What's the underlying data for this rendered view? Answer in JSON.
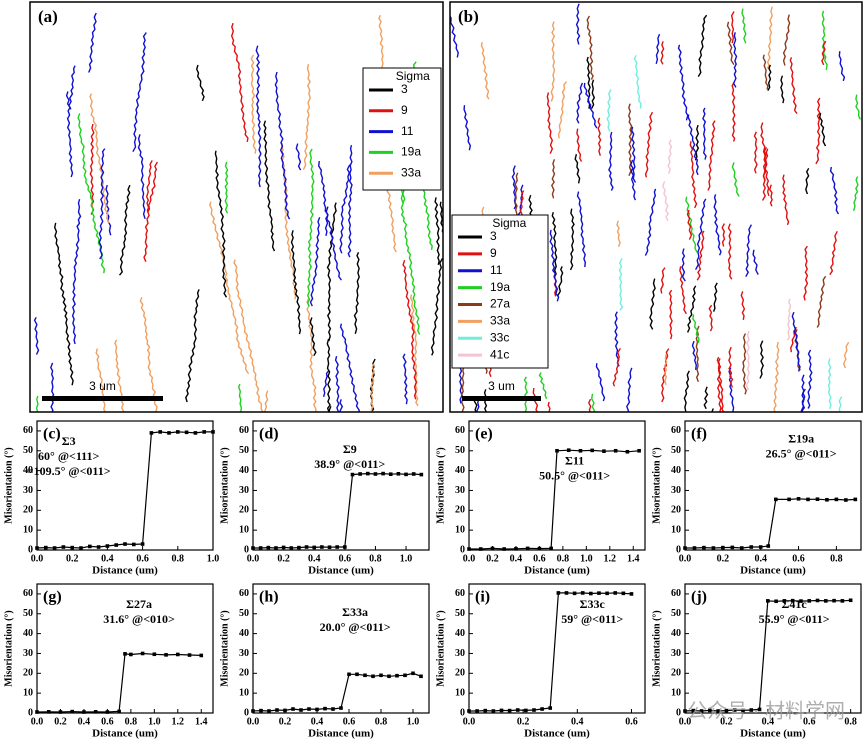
{
  "maps": [
    {
      "label": "(a)",
      "legend_title": "Sigma",
      "scale_bar": "3 um",
      "legend": [
        {
          "name": "3",
          "color": "#000000"
        },
        {
          "name": "9",
          "color": "#e01010"
        },
        {
          "name": "11",
          "color": "#1010d0"
        },
        {
          "name": "19a",
          "color": "#20d020"
        },
        {
          "name": "33a",
          "color": "#f0a060"
        }
      ]
    },
    {
      "label": "(b)",
      "legend_title": "Sigma",
      "scale_bar": "3 um",
      "legend": [
        {
          "name": "3",
          "color": "#000000"
        },
        {
          "name": "9",
          "color": "#e01010"
        },
        {
          "name": "11",
          "color": "#1010d0"
        },
        {
          "name": "19a",
          "color": "#20d020"
        },
        {
          "name": "27a",
          "color": "#8b3a1a"
        },
        {
          "name": "33a",
          "color": "#f0a060"
        },
        {
          "name": "33c",
          "color": "#70eedd"
        },
        {
          "name": "41c",
          "color": "#f4c4d4"
        }
      ]
    }
  ],
  "watermark": "公众号 · 材料学网",
  "chart_data": [
    {
      "type": "line",
      "label": "(c)",
      "annotation": [
        "Σ3",
        "60° @<111>",
        "=109.5° @<011>"
      ],
      "xlabel": "Distance (um)",
      "ylabel": "Misorientation (°)",
      "color": "#000000",
      "x": [
        0,
        0.05,
        0.1,
        0.15,
        0.2,
        0.25,
        0.3,
        0.35,
        0.4,
        0.45,
        0.5,
        0.55,
        0.6,
        0.65,
        0.7,
        0.75,
        0.8,
        0.85,
        0.9,
        0.95,
        1.0
      ],
      "values": [
        1,
        1.2,
        1,
        1.5,
        1.2,
        1,
        1.8,
        1.5,
        2,
        2.5,
        3,
        2.8,
        3,
        59,
        59.5,
        59,
        59.5,
        59.3,
        59,
        59.5,
        59.5
      ],
      "xlim": [
        0,
        1.0
      ],
      "ylim": [
        0,
        65
      ],
      "yticks": [
        0,
        10,
        20,
        30,
        40,
        50,
        60
      ],
      "xticks": [
        {
          "value": 0,
          "label": "0.0"
        },
        0.2,
        0.4,
        0.6,
        0.8,
        {
          "value": 1,
          "label": "1.0"
        }
      ]
    },
    {
      "type": "line",
      "label": "(d)",
      "annotation": [
        "Σ9",
        "38.9° @<011>"
      ],
      "xlabel": "Distance (um)",
      "ylabel": "Misorientation (°)",
      "color": "#000000",
      "x": [
        0,
        0.05,
        0.1,
        0.15,
        0.2,
        0.25,
        0.3,
        0.35,
        0.4,
        0.45,
        0.5,
        0.55,
        0.6,
        0.65,
        0.7,
        0.75,
        0.8,
        0.85,
        0.9,
        0.95,
        1.0,
        1.05,
        1.1
      ],
      "values": [
        1,
        1,
        1.2,
        1,
        1.3,
        1,
        1.2,
        1.5,
        1.3,
        1.5,
        1.4,
        1.5,
        1.5,
        38,
        38.3,
        38.5,
        38.3,
        38.5,
        38.2,
        38.4,
        38.1,
        38.3,
        38
      ],
      "xlim": [
        0,
        1.15
      ],
      "ylim": [
        0,
        65
      ],
      "yticks": [
        0,
        10,
        20,
        30,
        40,
        50,
        60
      ],
      "xticks": [
        {
          "value": 0,
          "label": "0.0"
        },
        0.2,
        0.4,
        0.6,
        0.8,
        {
          "value": 1,
          "label": "1.0"
        }
      ]
    },
    {
      "type": "line",
      "label": "(e)",
      "annotation": [
        "Σ11",
        "50.5° @<011>"
      ],
      "xlabel": "Distance (um)",
      "ylabel": "Misorientation (°)",
      "color": "#000000",
      "x": [
        0,
        0.1,
        0.2,
        0.3,
        0.4,
        0.5,
        0.6,
        0.7,
        0.75,
        0.85,
        0.95,
        1.05,
        1.15,
        1.25,
        1.35,
        1.45
      ],
      "values": [
        0.5,
        0.5,
        0.8,
        0.5,
        0.6,
        0.8,
        0.7,
        0.8,
        50,
        50.3,
        50,
        50.2,
        49.8,
        50,
        49.5,
        50
      ],
      "xlim": [
        0,
        1.5
      ],
      "ylim": [
        0,
        65
      ],
      "yticks": [
        0,
        10,
        20,
        30,
        40,
        50,
        60
      ],
      "xticks": [
        {
          "value": 0,
          "label": "0.0"
        },
        0.2,
        0.4,
        0.6,
        0.8,
        {
          "value": 1,
          "label": "1.0"
        },
        1.2,
        1.4
      ]
    },
    {
      "type": "line",
      "label": "(f)",
      "annotation": [
        "Σ19a",
        "26.5° @<011>"
      ],
      "xlabel": "Distance (um)",
      "ylabel": "Misorientation (°)",
      "color": "#000000",
      "x": [
        0,
        0.05,
        0.1,
        0.15,
        0.2,
        0.25,
        0.3,
        0.35,
        0.4,
        0.44,
        0.48,
        0.55,
        0.6,
        0.65,
        0.7,
        0.75,
        0.8,
        0.85,
        0.9
      ],
      "values": [
        1,
        1,
        1.2,
        1,
        1.2,
        1.3,
        1,
        1.5,
        1.5,
        2,
        25.5,
        25.5,
        25.8,
        25.5,
        25.6,
        25.3,
        25.5,
        25.2,
        25.5
      ],
      "xlim": [
        0,
        0.93
      ],
      "ylim": [
        0,
        65
      ],
      "yticks": [
        0,
        10,
        20,
        30,
        40,
        50,
        60
      ],
      "xticks": [
        {
          "value": 0,
          "label": "0.0"
        },
        0.2,
        0.4,
        0.6,
        0.8
      ]
    },
    {
      "type": "line",
      "label": "(g)",
      "annotation": [
        "Σ27a",
        "31.6° @<010>"
      ],
      "xlabel": "Distance (um)",
      "ylabel": "Misorientation (°)",
      "color": "#000000",
      "x": [
        0,
        0.1,
        0.2,
        0.3,
        0.4,
        0.5,
        0.6,
        0.7,
        0.75,
        0.8,
        0.9,
        1.0,
        1.1,
        1.2,
        1.3,
        1.4
      ],
      "values": [
        0.5,
        0.6,
        0.5,
        0.7,
        0.5,
        0.6,
        0.5,
        0.8,
        29.8,
        29.5,
        30,
        29.6,
        29.3,
        29.5,
        29.2,
        29
      ],
      "xlim": [
        0,
        1.5
      ],
      "ylim": [
        0,
        65
      ],
      "yticks": [
        0,
        10,
        20,
        30,
        40,
        50,
        60
      ],
      "xticks": [
        {
          "value": 0,
          "label": "0.0"
        },
        0.2,
        0.4,
        0.6,
        0.8,
        {
          "value": 1,
          "label": "1.0"
        },
        1.2,
        1.4
      ]
    },
    {
      "type": "line",
      "label": "(h)",
      "annotation": [
        "Σ33a",
        "20.0° @<011>"
      ],
      "xlabel": "Distance (um)",
      "ylabel": "Misorientation (°)",
      "color": "#000000",
      "x": [
        0,
        0.05,
        0.1,
        0.15,
        0.2,
        0.25,
        0.3,
        0.35,
        0.4,
        0.45,
        0.5,
        0.55,
        0.6,
        0.65,
        0.7,
        0.75,
        0.8,
        0.85,
        0.9,
        0.95,
        1.0,
        1.05
      ],
      "values": [
        1,
        1.2,
        1,
        1.5,
        1.3,
        2,
        1.5,
        2,
        1.8,
        2.2,
        2,
        2.5,
        19.5,
        19.5,
        19,
        18.5,
        19,
        18.5,
        18.8,
        19,
        20,
        18.5
      ],
      "xlim": [
        0,
        1.1
      ],
      "ylim": [
        0,
        65
      ],
      "yticks": [
        0,
        10,
        20,
        30,
        40,
        50,
        60
      ],
      "xticks": [
        {
          "value": 0,
          "label": "0.0"
        },
        0.2,
        0.4,
        0.6,
        0.8,
        {
          "value": 1,
          "label": "1.0"
        }
      ]
    },
    {
      "type": "line",
      "label": "(i)",
      "annotation": [
        "Σ33c",
        "59° @<011>"
      ],
      "xlabel": "Distance (um)",
      "ylabel": "Misorientation (°)",
      "color": "#000000",
      "x": [
        0,
        0.03,
        0.06,
        0.09,
        0.12,
        0.15,
        0.18,
        0.21,
        0.24,
        0.27,
        0.3,
        0.33,
        0.36,
        0.39,
        0.42,
        0.45,
        0.48,
        0.51,
        0.54,
        0.57,
        0.6
      ],
      "values": [
        1,
        1,
        1.2,
        1,
        1.3,
        1.2,
        1.5,
        1.3,
        1.5,
        2,
        2.5,
        60.5,
        60.5,
        60.3,
        60.5,
        60.2,
        60.4,
        60.3,
        60.5,
        60.3,
        60
      ],
      "xlim": [
        0,
        0.65
      ],
      "ylim": [
        0,
        65
      ],
      "yticks": [
        0,
        10,
        20,
        30,
        40,
        50,
        60
      ],
      "xticks": [
        {
          "value": 0,
          "label": "0.0"
        },
        0.2,
        0.4,
        0.6
      ]
    },
    {
      "type": "line",
      "label": "(j)",
      "annotation": [
        "Σ41c",
        "55.9° @<011>"
      ],
      "xlabel": "Distance (um)",
      "ylabel": "Misorientation (°)",
      "color": "#000000",
      "x": [
        0,
        0.04,
        0.08,
        0.12,
        0.16,
        0.2,
        0.24,
        0.28,
        0.32,
        0.36,
        0.4,
        0.44,
        0.48,
        0.52,
        0.56,
        0.6,
        0.64,
        0.68,
        0.72,
        0.76,
        0.8
      ],
      "values": [
        1,
        1.2,
        1,
        1.3,
        1,
        1.2,
        1.5,
        1.3,
        1.5,
        1.8,
        56.5,
        56.3,
        56.5,
        56.6,
        56.4,
        56.5,
        56.7,
        56.5,
        56.6,
        56.5,
        56.8
      ],
      "xlim": [
        0,
        0.85
      ],
      "ylim": [
        0,
        65
      ],
      "yticks": [
        0,
        10,
        20,
        30,
        40,
        50,
        60
      ],
      "xticks": [
        {
          "value": 0,
          "label": "0.0"
        },
        0.2,
        0.4,
        0.6,
        0.8
      ]
    }
  ]
}
